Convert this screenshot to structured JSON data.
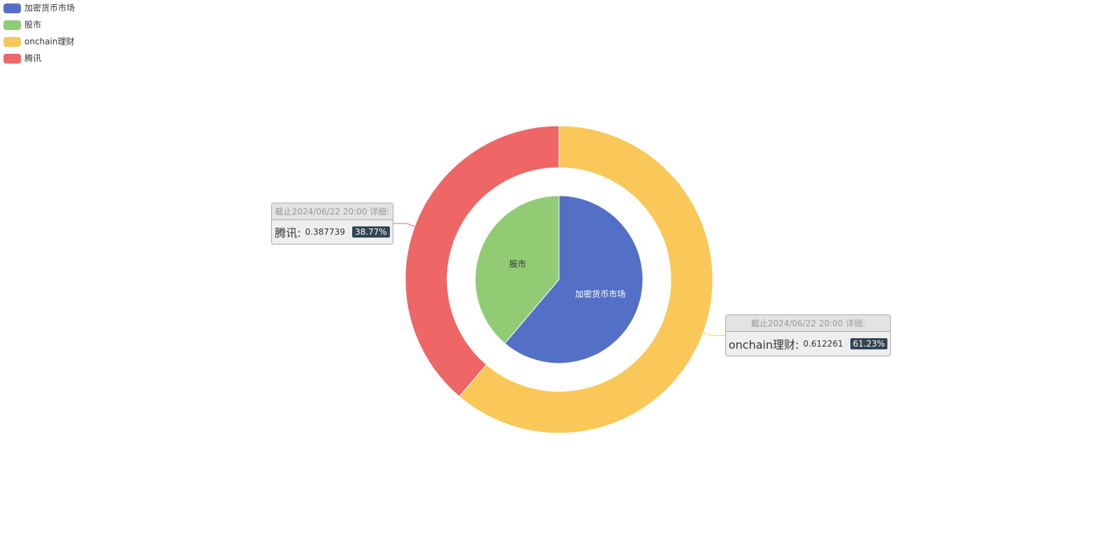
{
  "chart_data": {
    "type": "pie",
    "inner": {
      "categories": [
        "加密货币市场",
        "股市"
      ],
      "values": [
        0.612,
        0.388
      ],
      "colors": [
        "#5470c6",
        "#91cc75"
      ],
      "label_colors": [
        "#ffffff",
        "#333333"
      ]
    },
    "outer": {
      "categories": [
        "onchain理财",
        "腾讯"
      ],
      "values": [
        0.612261,
        0.387739
      ],
      "colors": [
        "#fac858",
        "#ee6666"
      ],
      "label_header": "截止2024/06/22 20:00 详细:",
      "label_names": [
        "onchain理财:",
        "腾讯:"
      ],
      "value_labels": [
        "61.23%",
        "38.77%"
      ]
    },
    "legend_position": "top-left"
  }
}
